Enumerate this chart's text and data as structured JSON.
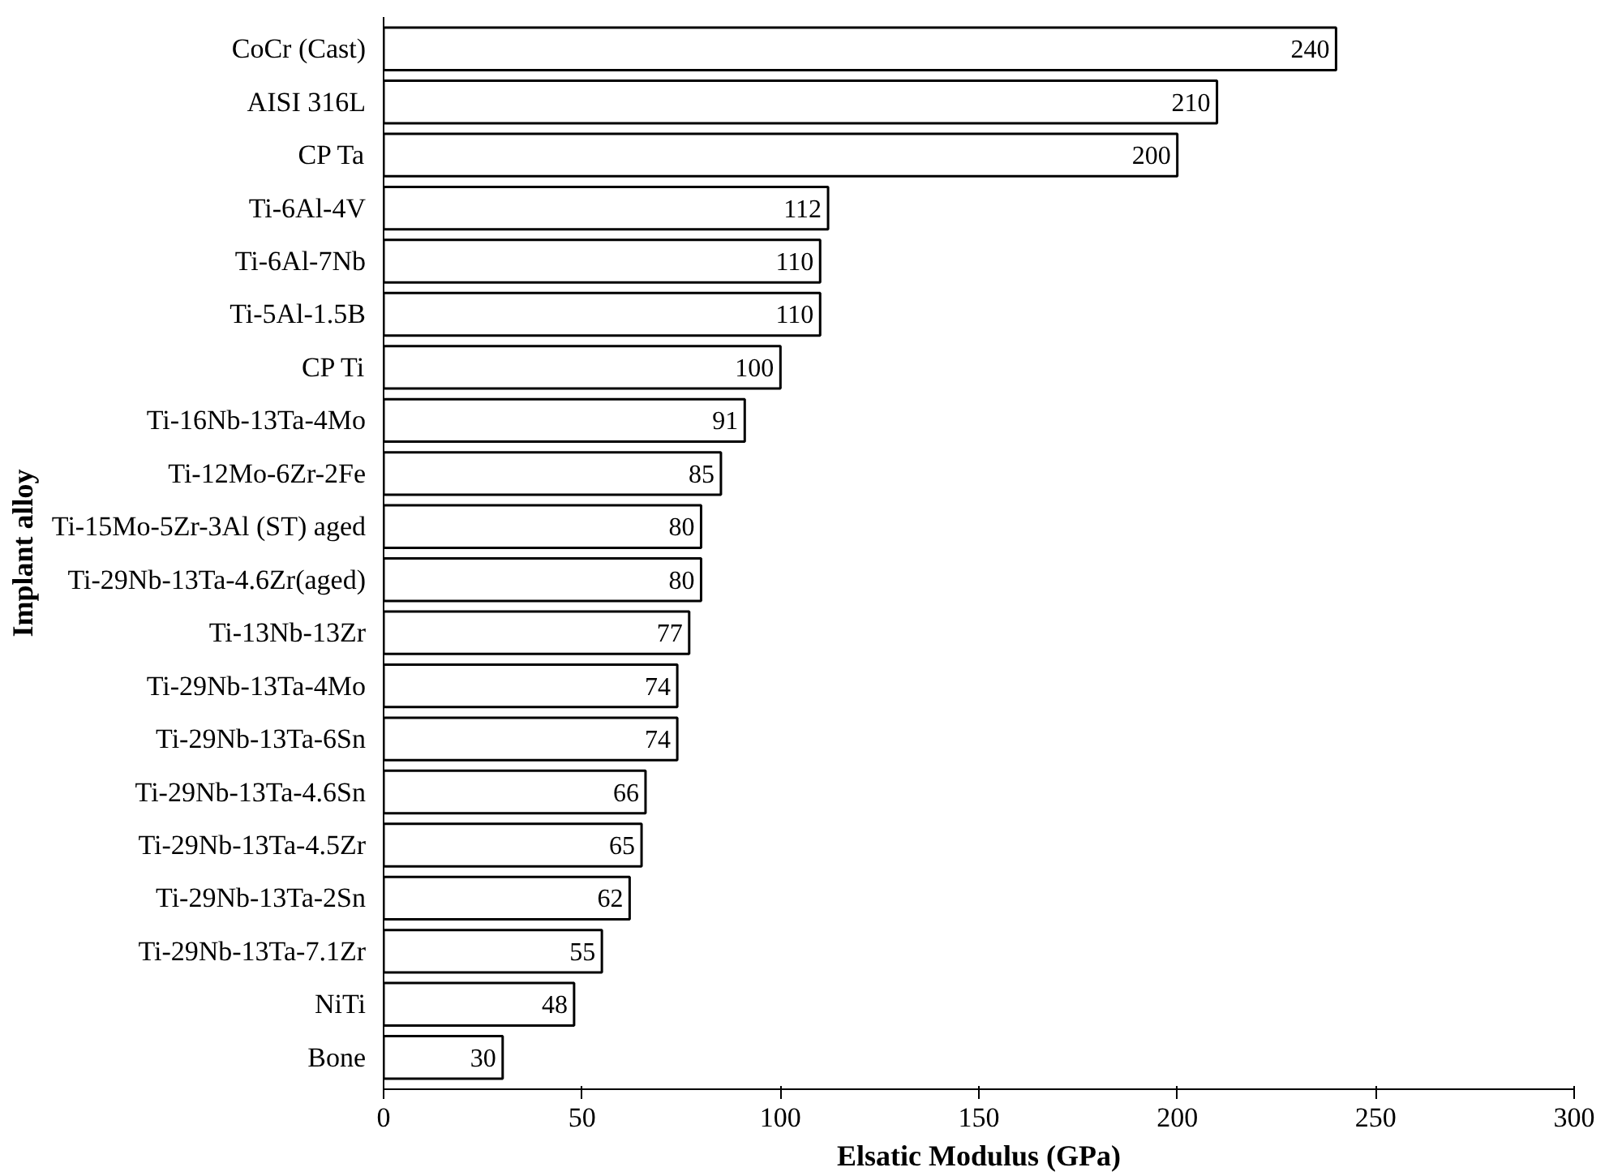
{
  "chart_data": {
    "type": "bar",
    "orientation": "horizontal",
    "xlabel": "Elsatic Modulus (GPa)",
    "ylabel": "Implant alloy",
    "categories": [
      "CoCr (Cast)",
      "AISI 316L",
      "CP Ta",
      "Ti-6Al-4V",
      "Ti-6Al-7Nb",
      "Ti-5Al-1.5B",
      "CP Ti",
      "Ti-16Nb-13Ta-4Mo",
      "Ti-12Mo-6Zr-2Fe",
      "Ti-15Mo-5Zr-3Al (ST) aged",
      "Ti-29Nb-13Ta-4.6Zr(aged)",
      "Ti-13Nb-13Zr",
      "Ti-29Nb-13Ta-4Mo",
      "Ti-29Nb-13Ta-6Sn",
      "Ti-29Nb-13Ta-4.6Sn",
      "Ti-29Nb-13Ta-4.5Zr",
      "Ti-29Nb-13Ta-2Sn",
      "Ti-29Nb-13Ta-7.1Zr",
      "NiTi",
      "Bone"
    ],
    "values": [
      240,
      210,
      200,
      112,
      110,
      110,
      100,
      91,
      85,
      80,
      80,
      77,
      74,
      74,
      66,
      65,
      62,
      55,
      48,
      30
    ],
    "color": "#ffffff",
    "data_labels": true,
    "xlim": [
      0,
      300
    ],
    "xticks": [
      0,
      50,
      100,
      150,
      200,
      250,
      300
    ],
    "grid": false
  }
}
